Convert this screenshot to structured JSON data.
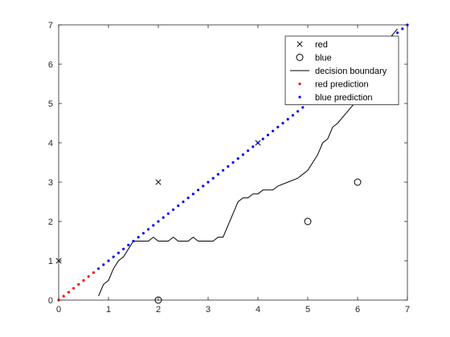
{
  "chart_data": {
    "type": "scatter",
    "title": "",
    "xlabel": "",
    "ylabel": "",
    "xlim": [
      0,
      7
    ],
    "ylim": [
      0,
      7
    ],
    "xticks": [
      "0",
      "1",
      "2",
      "3",
      "4",
      "5",
      "6",
      "7"
    ],
    "yticks": [
      "0",
      "1",
      "2",
      "3",
      "4",
      "5",
      "6",
      "7"
    ],
    "grid": false,
    "legend_position": "top-right",
    "series": [
      {
        "name": "red",
        "marker": "x",
        "color": "#000000",
        "points": [
          [
            0,
            1
          ],
          [
            2,
            3
          ],
          [
            4,
            4
          ]
        ]
      },
      {
        "name": "blue",
        "marker": "o",
        "color": "#000000",
        "points": [
          [
            2,
            0
          ],
          [
            5,
            2
          ],
          [
            6,
            3
          ]
        ]
      },
      {
        "name": "decision boundary",
        "marker": "line",
        "color": "#000000",
        "points": [
          [
            0.8,
            0.1
          ],
          [
            0.9,
            0.4
          ],
          [
            1.0,
            0.5
          ],
          [
            1.1,
            0.8
          ],
          [
            1.2,
            1.0
          ],
          [
            1.3,
            1.1
          ],
          [
            1.4,
            1.3
          ],
          [
            1.5,
            1.5
          ],
          [
            1.8,
            1.5
          ],
          [
            1.9,
            1.6
          ],
          [
            2.0,
            1.5
          ],
          [
            2.2,
            1.5
          ],
          [
            2.3,
            1.6
          ],
          [
            2.4,
            1.5
          ],
          [
            2.6,
            1.5
          ],
          [
            2.7,
            1.6
          ],
          [
            2.8,
            1.5
          ],
          [
            3.1,
            1.5
          ],
          [
            3.2,
            1.6
          ],
          [
            3.3,
            1.6
          ],
          [
            3.5,
            2.2
          ],
          [
            3.6,
            2.5
          ],
          [
            3.7,
            2.6
          ],
          [
            3.8,
            2.6
          ],
          [
            3.9,
            2.7
          ],
          [
            4.0,
            2.7
          ],
          [
            4.1,
            2.8
          ],
          [
            4.3,
            2.8
          ],
          [
            4.4,
            2.9
          ],
          [
            4.6,
            3.0
          ],
          [
            4.8,
            3.1
          ],
          [
            4.9,
            3.2
          ],
          [
            5.0,
            3.3
          ],
          [
            5.1,
            3.5
          ],
          [
            5.2,
            3.7
          ],
          [
            5.3,
            4.0
          ],
          [
            5.4,
            4.1
          ],
          [
            5.5,
            4.4
          ],
          [
            5.6,
            4.5
          ],
          [
            5.8,
            4.8
          ],
          [
            6.0,
            5.1
          ],
          [
            6.2,
            5.5
          ],
          [
            6.4,
            6.0
          ],
          [
            6.6,
            6.6
          ],
          [
            6.8,
            6.9
          ]
        ]
      },
      {
        "name": "red prediction",
        "marker": "dot",
        "color": "#ff0000",
        "points": [
          [
            0,
            0
          ],
          [
            0.1,
            0.1
          ],
          [
            0.2,
            0.2
          ],
          [
            0.3,
            0.3
          ],
          [
            0.4,
            0.4
          ],
          [
            0.5,
            0.5
          ],
          [
            0.6,
            0.6
          ],
          [
            0.7,
            0.7
          ]
        ]
      },
      {
        "name": "blue prediction",
        "marker": "dot",
        "color": "#0000ff",
        "points": [
          [
            0.8,
            0.8
          ],
          [
            0.9,
            0.9
          ],
          [
            1.0,
            1.0
          ],
          [
            1.1,
            1.1
          ],
          [
            1.2,
            1.2
          ],
          [
            1.3,
            1.3
          ],
          [
            1.4,
            1.4
          ],
          [
            1.5,
            1.5
          ],
          [
            1.6,
            1.6
          ],
          [
            1.7,
            1.7
          ],
          [
            1.8,
            1.8
          ],
          [
            1.9,
            1.9
          ],
          [
            2.0,
            2.0
          ],
          [
            2.1,
            2.1
          ],
          [
            2.2,
            2.2
          ],
          [
            2.3,
            2.3
          ],
          [
            2.4,
            2.4
          ],
          [
            2.5,
            2.5
          ],
          [
            2.6,
            2.6
          ],
          [
            2.7,
            2.7
          ],
          [
            2.8,
            2.8
          ],
          [
            2.9,
            2.9
          ],
          [
            3.0,
            3.0
          ],
          [
            3.1,
            3.1
          ],
          [
            3.2,
            3.2
          ],
          [
            3.3,
            3.3
          ],
          [
            3.4,
            3.4
          ],
          [
            3.5,
            3.5
          ],
          [
            3.6,
            3.6
          ],
          [
            3.7,
            3.7
          ],
          [
            3.8,
            3.8
          ],
          [
            3.9,
            3.9
          ],
          [
            4.0,
            4.0
          ],
          [
            4.1,
            4.1
          ],
          [
            4.2,
            4.2
          ],
          [
            4.3,
            4.3
          ],
          [
            4.4,
            4.4
          ],
          [
            4.5,
            4.5
          ],
          [
            4.6,
            4.6
          ],
          [
            4.7,
            4.7
          ],
          [
            4.8,
            4.8
          ],
          [
            4.9,
            4.9
          ],
          [
            5.0,
            5.0
          ],
          [
            5.1,
            5.1
          ],
          [
            5.2,
            5.2
          ],
          [
            5.3,
            5.3
          ],
          [
            5.4,
            5.4
          ],
          [
            5.5,
            5.5
          ],
          [
            5.6,
            5.6
          ],
          [
            5.7,
            5.7
          ],
          [
            5.8,
            5.8
          ],
          [
            5.9,
            5.9
          ],
          [
            6.0,
            6.0
          ],
          [
            6.1,
            6.1
          ],
          [
            6.2,
            6.2
          ],
          [
            6.3,
            6.3
          ],
          [
            6.4,
            6.4
          ],
          [
            6.5,
            6.5
          ],
          [
            6.6,
            6.6
          ],
          [
            6.7,
            6.7
          ],
          [
            6.8,
            6.8
          ],
          [
            6.9,
            6.9
          ],
          [
            7.0,
            7.0
          ]
        ]
      }
    ]
  }
}
